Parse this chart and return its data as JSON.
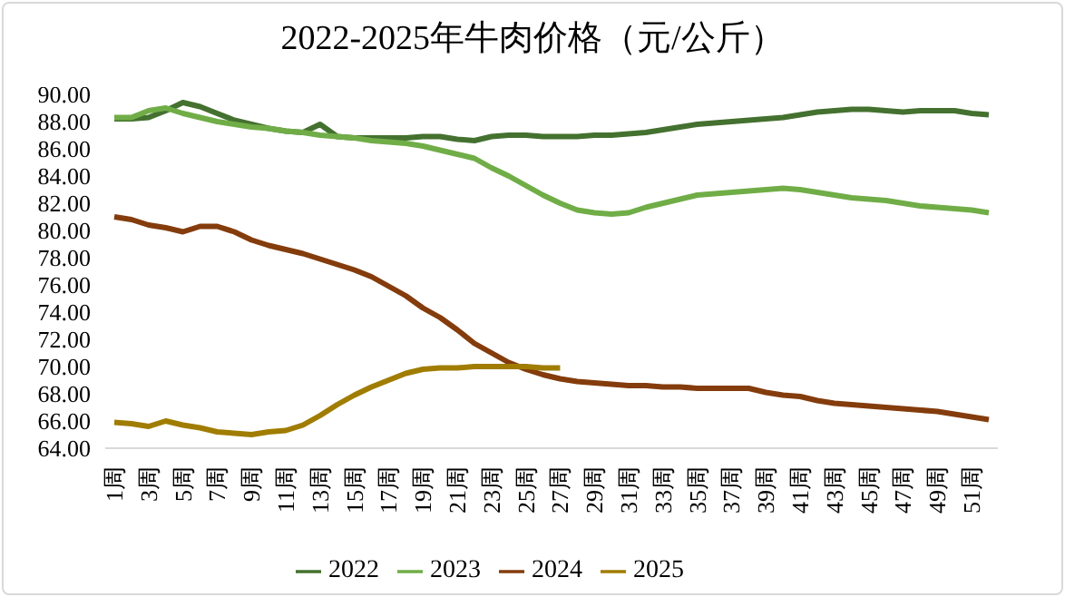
{
  "chart_data": {
    "type": "line",
    "title": "2022-2025年牛肉价格（元/公斤）",
    "categories": [
      "1周",
      null,
      "3周",
      null,
      "5周",
      null,
      "7周",
      null,
      "9周",
      null,
      "11周",
      null,
      "13周",
      null,
      "15周",
      null,
      "17周",
      null,
      "19周",
      null,
      "21周",
      null,
      "23周",
      null,
      "25周",
      null,
      "27周",
      null,
      "29周",
      null,
      "31周",
      null,
      "33周",
      null,
      "35周",
      null,
      "37周",
      null,
      "39周",
      null,
      "41周",
      null,
      "43周",
      null,
      "45周",
      null,
      "47周",
      null,
      "49周",
      null,
      "51周",
      null
    ],
    "series": [
      {
        "name": "2022",
        "color": "#44712f",
        "values": [
          88.2,
          88.2,
          88.3,
          88.8,
          89.4,
          89.1,
          88.6,
          88.1,
          87.8,
          87.5,
          87.3,
          87.2,
          87.8,
          86.9,
          86.8,
          86.8,
          86.8,
          86.8,
          86.9,
          86.9,
          86.7,
          86.6,
          86.9,
          87.0,
          87.0,
          86.9,
          86.9,
          86.9,
          87.0,
          87.0,
          87.1,
          87.2,
          87.4,
          87.6,
          87.8,
          87.9,
          88.0,
          88.1,
          88.2,
          88.3,
          88.5,
          88.7,
          88.8,
          88.9,
          88.9,
          88.8,
          88.7,
          88.8,
          88.8,
          88.8,
          88.6,
          88.5
        ]
      },
      {
        "name": "2023",
        "color": "#70ad47",
        "values": [
          88.3,
          88.3,
          88.8,
          89.0,
          88.6,
          88.3,
          88.0,
          87.8,
          87.6,
          87.5,
          87.3,
          87.2,
          87.0,
          86.9,
          86.8,
          86.6,
          86.5,
          86.4,
          86.2,
          85.9,
          85.6,
          85.3,
          84.6,
          84.0,
          83.3,
          82.6,
          82.0,
          81.5,
          81.3,
          81.2,
          81.3,
          81.7,
          82.0,
          82.3,
          82.6,
          82.7,
          82.8,
          82.9,
          83.0,
          83.1,
          83.0,
          82.8,
          82.6,
          82.4,
          82.3,
          82.2,
          82.0,
          81.8,
          81.7,
          81.6,
          81.5,
          81.3
        ]
      },
      {
        "name": "2024",
        "color": "#843c0c",
        "values": [
          81.0,
          80.8,
          80.4,
          80.2,
          79.9,
          80.3,
          80.3,
          79.9,
          79.3,
          78.9,
          78.6,
          78.3,
          77.9,
          77.5,
          77.1,
          76.6,
          75.9,
          75.2,
          74.3,
          73.6,
          72.7,
          71.7,
          71.0,
          70.3,
          69.8,
          69.4,
          69.1,
          68.9,
          68.8,
          68.7,
          68.6,
          68.6,
          68.5,
          68.5,
          68.4,
          68.4,
          68.4,
          68.4,
          68.1,
          67.9,
          67.8,
          67.5,
          67.3,
          67.2,
          67.1,
          67.0,
          66.9,
          66.8,
          66.7,
          66.5,
          66.3,
          66.1
        ]
      },
      {
        "name": "2025",
        "color": "#a07c00",
        "values": [
          65.9,
          65.8,
          65.6,
          66.0,
          65.7,
          65.5,
          65.2,
          65.1,
          65.0,
          65.2,
          65.3,
          65.7,
          66.4,
          67.2,
          67.9,
          68.5,
          69.0,
          69.5,
          69.8,
          69.9,
          69.9,
          70.0,
          70.0,
          70.0,
          70.0,
          69.9,
          69.9,
          null,
          null,
          null,
          null,
          null,
          null,
          null,
          null,
          null,
          null,
          null,
          null,
          null,
          null,
          null,
          null,
          null,
          null,
          null,
          null,
          null,
          null,
          null,
          null,
          null
        ]
      }
    ],
    "ylim": [
      64,
      90
    ],
    "yticks": [
      {
        "value": 64,
        "label": "64.00"
      },
      {
        "value": 66,
        "label": "66.00"
      },
      {
        "value": 68,
        "label": "68.00"
      },
      {
        "value": 70,
        "label": "70.00"
      },
      {
        "value": 72,
        "label": "72.00"
      },
      {
        "value": 74,
        "label": "74.00"
      },
      {
        "value": 76,
        "label": "76.00"
      },
      {
        "value": 78,
        "label": "78.00"
      },
      {
        "value": 80,
        "label": "80.00"
      },
      {
        "value": 82,
        "label": "82.00"
      },
      {
        "value": 84,
        "label": "84.00"
      },
      {
        "value": 86,
        "label": "86.00"
      },
      {
        "value": 88,
        "label": "88.00"
      },
      {
        "value": 90,
        "label": "90.00"
      }
    ],
    "grid": false,
    "legend": "bottom",
    "marker": "none",
    "line_style": "solid"
  }
}
